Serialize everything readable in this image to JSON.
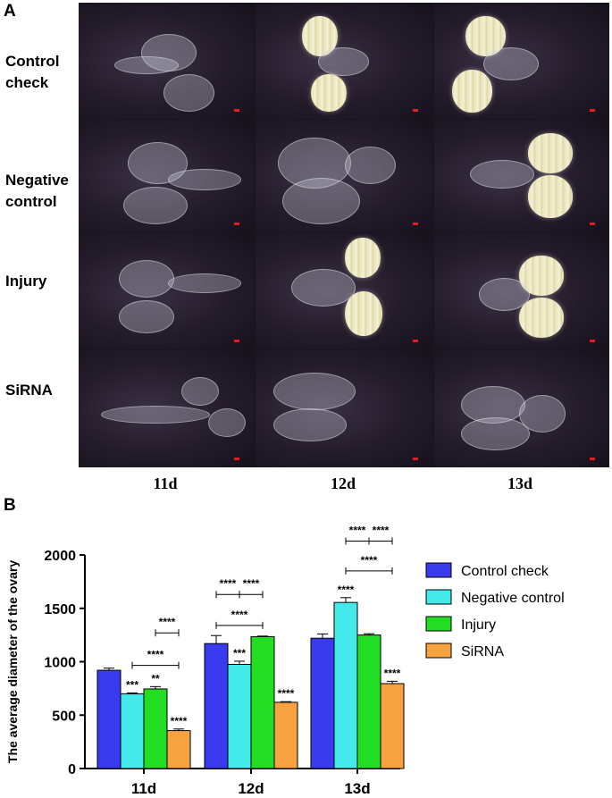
{
  "panel_a_label": "A",
  "panel_b_label": "B",
  "figure_a": {
    "row_labels": [
      "Control\ncheck",
      "Negative\ncontrol",
      "Injury",
      "SiRNA"
    ],
    "col_labels": [
      "11d",
      "12d",
      "13d"
    ]
  },
  "chart_data": {
    "type": "bar",
    "categories": [
      "11d",
      "12d",
      "13d"
    ],
    "ylabel": "The average diameter of the ovary",
    "xlabel": "",
    "ylim": [
      0,
      2000
    ],
    "yticks": [
      0,
      500,
      1000,
      1500,
      2000
    ],
    "legend_position": "right",
    "series": [
      {
        "name": "Control check",
        "color": "#3a3aee",
        "values": [
          920,
          1170,
          1220
        ],
        "errors": [
          20,
          75,
          40
        ],
        "sig": [
          "",
          "",
          ""
        ]
      },
      {
        "name": "Negative control",
        "color": "#44eaea",
        "values": [
          700,
          975,
          1555
        ],
        "errors": [
          8,
          30,
          45
        ],
        "sig": [
          "***",
          "***",
          "****"
        ]
      },
      {
        "name": "Injury",
        "color": "#22dd22",
        "values": [
          745,
          1235,
          1250
        ],
        "errors": [
          22,
          5,
          12
        ],
        "sig": [
          "**",
          "",
          ""
        ]
      },
      {
        "name": "SiRNA",
        "color": "#f7a240",
        "values": [
          355,
          620,
          795
        ],
        "errors": [
          15,
          6,
          22
        ],
        "sig": [
          "****",
          "****",
          "****"
        ]
      }
    ],
    "comparisons": [
      {
        "category": 0,
        "from": 1,
        "to": 3,
        "y": 965,
        "label": "****"
      },
      {
        "category": 0,
        "from": 2,
        "to": 3,
        "y": 1270,
        "label": "****"
      },
      {
        "category": 1,
        "from": 0,
        "to": 2,
        "y": 1340,
        "label": "****"
      },
      {
        "category": 1,
        "from": 0,
        "to": 1,
        "y": 1630,
        "label": "****"
      },
      {
        "category": 1,
        "from": 1,
        "to": 2,
        "y": 1630,
        "label": "****"
      },
      {
        "category": 2,
        "from": 1,
        "to": 3,
        "y": 1850,
        "label": "****"
      },
      {
        "category": 2,
        "from": 1,
        "to": 2,
        "y": 2130,
        "label": "****"
      },
      {
        "category": 2,
        "from": 2,
        "to": 3,
        "y": 2130,
        "label": "****"
      }
    ]
  }
}
